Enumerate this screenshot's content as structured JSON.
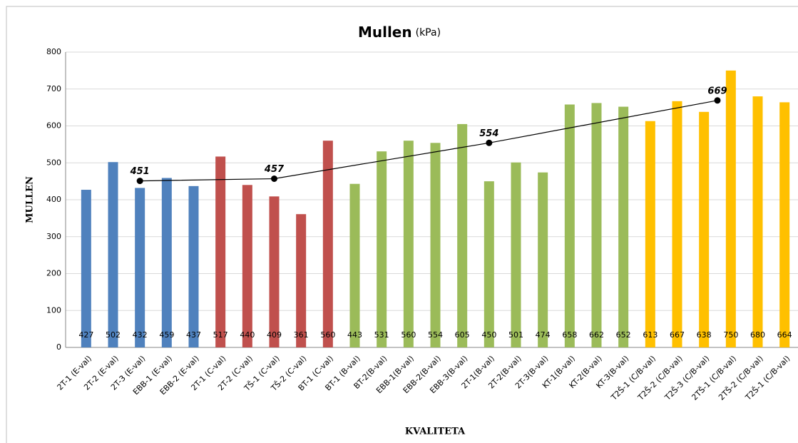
{
  "chart_data": {
    "type": "bar",
    "title": "Mullen",
    "title_unit": "(kPa)",
    "ylabel": "MULLEN",
    "xlabel": "KVALITETA",
    "categories": [
      "2T-1 (E-val)",
      "2T-2 (E-val)",
      "2T-3 (E-val)",
      "EBB-1 (E-val)",
      "EBB-2 (E-val)",
      "2T-1 (C-val)",
      "2T-2 (C-val)",
      "TŠ-1 (C-val)",
      "TŠ-2 (C-val)",
      "BT-1 (C-val)",
      "BT-1 (B-val)",
      "BT-2(B-val)",
      "EBB-1(B-val)",
      "EBB-2(B-val)",
      "EBB-3(B-val)",
      "2T-1(B-val)",
      "2T-2(B-val)",
      "2T-3(B-val)",
      "KT-1(B-val)",
      "KT-2(B-val)",
      "KT-3(B-val)",
      "T2Š-1 (C/B-val)",
      "T2Š-2 (C/B-val)",
      "T2Š-3 (C/B-val)",
      "2TŠ-1 (C/B-val)",
      "2TŠ-2 (C/B-val)",
      "T2Š-1 (C/B-val)"
    ],
    "values": [
      427,
      502,
      432,
      459,
      437,
      517,
      440,
      409,
      361,
      560,
      443,
      531,
      560,
      554,
      605,
      450,
      501,
      474,
      658,
      662,
      652,
      613,
      667,
      638,
      750,
      680,
      664
    ],
    "colors": [
      "#4f81bd",
      "#4f81bd",
      "#4f81bd",
      "#4f81bd",
      "#4f81bd",
      "#c0504d",
      "#c0504d",
      "#c0504d",
      "#c0504d",
      "#c0504d",
      "#9bbb59",
      "#9bbb59",
      "#9bbb59",
      "#9bbb59",
      "#9bbb59",
      "#9bbb59",
      "#9bbb59",
      "#9bbb59",
      "#9bbb59",
      "#9bbb59",
      "#9bbb59",
      "#ffc000",
      "#ffc000",
      "#ffc000",
      "#ffc000",
      "#ffc000",
      "#ffc000"
    ],
    "line": {
      "x": [
        2,
        7,
        15,
        23.5
      ],
      "values": [
        451,
        457,
        554,
        669
      ],
      "color": "#000000"
    },
    "ylim": [
      0,
      800
    ],
    "yticks": [
      0,
      100,
      200,
      300,
      400,
      500,
      600,
      700,
      800
    ],
    "grid": true
  }
}
